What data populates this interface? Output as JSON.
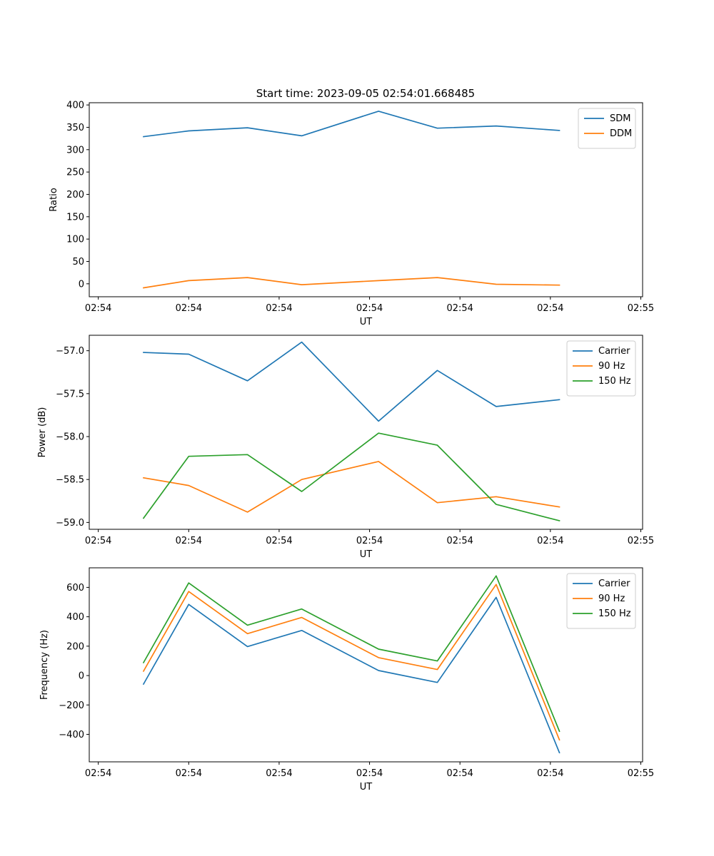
{
  "figure_title": "Start time: 2023-09-05 02:54:01.668485",
  "colors": {
    "c0": "#1f77b4",
    "c1": "#ff7f0e",
    "c2": "#2ca02c"
  },
  "chart_data": [
    {
      "type": "line",
      "xlabel": "UT",
      "ylabel": "Ratio",
      "x_ticks": [
        "02:54",
        "02:54",
        "02:54",
        "02:54",
        "02:54",
        "02:54",
        "02:55"
      ],
      "x_tick_values": [
        0,
        1,
        2,
        3,
        4,
        5,
        6
      ],
      "x": [
        0.5,
        1.0,
        1.65,
        2.25,
        3.1,
        3.75,
        4.4,
        5.1
      ],
      "xlim": [
        -0.1,
        6.02
      ],
      "ylim": [
        -29,
        405
      ],
      "y_ticks": [
        0,
        50,
        100,
        150,
        200,
        250,
        300,
        350,
        400
      ],
      "legend_position": "top-right",
      "series": [
        {
          "name": "SDM",
          "color": "#1f77b4",
          "values": [
            329,
            342,
            349,
            331,
            386,
            348,
            353,
            343
          ]
        },
        {
          "name": "DDM",
          "color": "#ff7f0e",
          "values": [
            -9,
            7,
            14,
            -2,
            7,
            14,
            -1,
            -3
          ]
        }
      ]
    },
    {
      "type": "line",
      "xlabel": "UT",
      "ylabel": "Power (dB)",
      "x_ticks": [
        "02:54",
        "02:54",
        "02:54",
        "02:54",
        "02:54",
        "02:54",
        "02:55"
      ],
      "x_tick_values": [
        0,
        1,
        2,
        3,
        4,
        5,
        6
      ],
      "x": [
        0.5,
        1.0,
        1.65,
        2.25,
        3.1,
        3.75,
        4.4,
        5.1
      ],
      "xlim": [
        -0.1,
        6.02
      ],
      "ylim": [
        -59.08,
        -56.82
      ],
      "y_ticks": [
        -57.0,
        -57.5,
        -58.0,
        -58.5,
        -59.0
      ],
      "y_tick_labels": [
        "−57.0",
        "−57.5",
        "−58.0",
        "−58.5",
        "−59.0"
      ],
      "legend_position": "top-right",
      "series": [
        {
          "name": "Carrier",
          "color": "#1f77b4",
          "values": [
            -57.02,
            -57.04,
            -57.35,
            -56.9,
            -57.82,
            -57.23,
            -57.65,
            -57.57
          ]
        },
        {
          "name": "90 Hz",
          "color": "#ff7f0e",
          "values": [
            -58.48,
            -58.57,
            -58.88,
            -58.5,
            -58.29,
            -58.77,
            -58.7,
            -58.82
          ]
        },
        {
          "name": "150 Hz",
          "color": "#2ca02c",
          "values": [
            -58.95,
            -58.23,
            -58.21,
            -58.64,
            -57.96,
            -58.1,
            -58.79,
            -58.98
          ]
        }
      ]
    },
    {
      "type": "line",
      "xlabel": "UT",
      "ylabel": "Frequency (Hz)",
      "x_ticks": [
        "02:54",
        "02:54",
        "02:54",
        "02:54",
        "02:54",
        "02:54",
        "02:55"
      ],
      "x_tick_values": [
        0,
        1,
        2,
        3,
        4,
        5,
        6
      ],
      "x": [
        0.5,
        1.0,
        1.65,
        2.25,
        3.1,
        3.75,
        4.4,
        5.1
      ],
      "xlim": [
        -0.1,
        6.02
      ],
      "ylim": [
        -587,
        733
      ],
      "y_ticks": [
        600,
        400,
        200,
        0,
        -200,
        -400
      ],
      "y_tick_labels": [
        "600",
        "400",
        "200",
        "0",
        "−200",
        "−400"
      ],
      "legend_position": "top-right",
      "series": [
        {
          "name": "Carrier",
          "color": "#1f77b4",
          "values": [
            -58,
            484,
            197,
            307,
            34,
            -47,
            532,
            -525
          ]
        },
        {
          "name": "90 Hz",
          "color": "#ff7f0e",
          "values": [
            30,
            572,
            285,
            395,
            122,
            41,
            620,
            -437
          ]
        },
        {
          "name": "150 Hz",
          "color": "#2ca02c",
          "values": [
            88,
            630,
            343,
            453,
            180,
            99,
            678,
            -379
          ]
        }
      ]
    }
  ]
}
